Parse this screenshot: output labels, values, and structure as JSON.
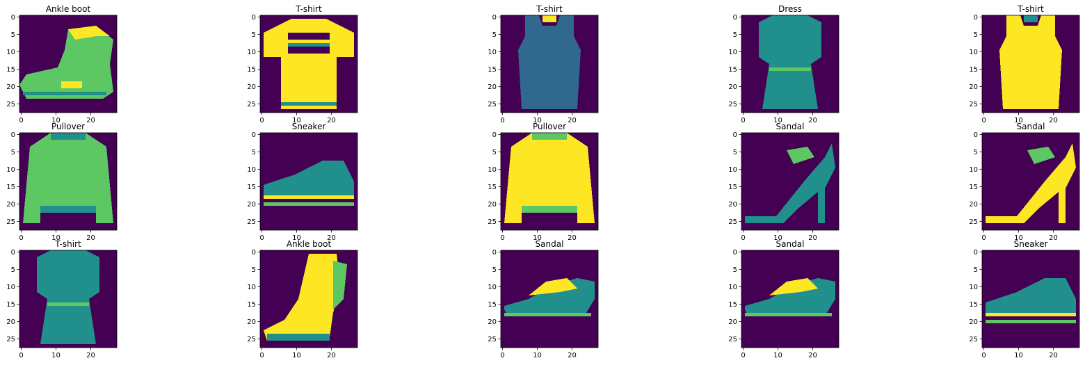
{
  "colormap": {
    "name": "viridis",
    "stops": [
      "#440154",
      "#3b528b",
      "#21908c",
      "#5dc863",
      "#fde725"
    ]
  },
  "axes_common": {
    "x_ticks": [
      "0",
      "10",
      "20"
    ],
    "y_ticks": [
      "0",
      "5",
      "10",
      "15",
      "20",
      "25"
    ],
    "image_size": [
      28,
      28
    ]
  },
  "panels": [
    {
      "title": "Ankle boot",
      "icon": "ankle-boot-icon",
      "tone": "medium-bright"
    },
    {
      "title": "T-shirt",
      "icon": "tshirt-icon",
      "tone": "bright"
    },
    {
      "title": "T-shirt",
      "icon": "tank-top-icon",
      "tone": "dark"
    },
    {
      "title": "Dress",
      "icon": "dress-icon",
      "tone": "medium"
    },
    {
      "title": "T-shirt",
      "icon": "tank-top-icon",
      "tone": "bright"
    },
    {
      "title": "Pullover",
      "icon": "pullover-icon",
      "tone": "medium-bright"
    },
    {
      "title": "Sneaker",
      "icon": "sneaker-icon",
      "tone": "medium"
    },
    {
      "title": "Pullover",
      "icon": "pullover-icon",
      "tone": "bright"
    },
    {
      "title": "Sandal",
      "icon": "high-heel-sandal-icon",
      "tone": "medium"
    },
    {
      "title": "Sandal",
      "icon": "high-heel-sandal-icon",
      "tone": "bright"
    },
    {
      "title": "T-shirt",
      "icon": "dress-icon",
      "tone": "medium"
    },
    {
      "title": "Ankle boot",
      "icon": "heeled-boot-icon",
      "tone": "bright"
    },
    {
      "title": "Sandal",
      "icon": "flat-sandal-icon",
      "tone": "medium"
    },
    {
      "title": "Sandal",
      "icon": "flat-sandal-icon",
      "tone": "medium"
    },
    {
      "title": "Sneaker",
      "icon": "sneaker-icon",
      "tone": "medium"
    }
  ]
}
